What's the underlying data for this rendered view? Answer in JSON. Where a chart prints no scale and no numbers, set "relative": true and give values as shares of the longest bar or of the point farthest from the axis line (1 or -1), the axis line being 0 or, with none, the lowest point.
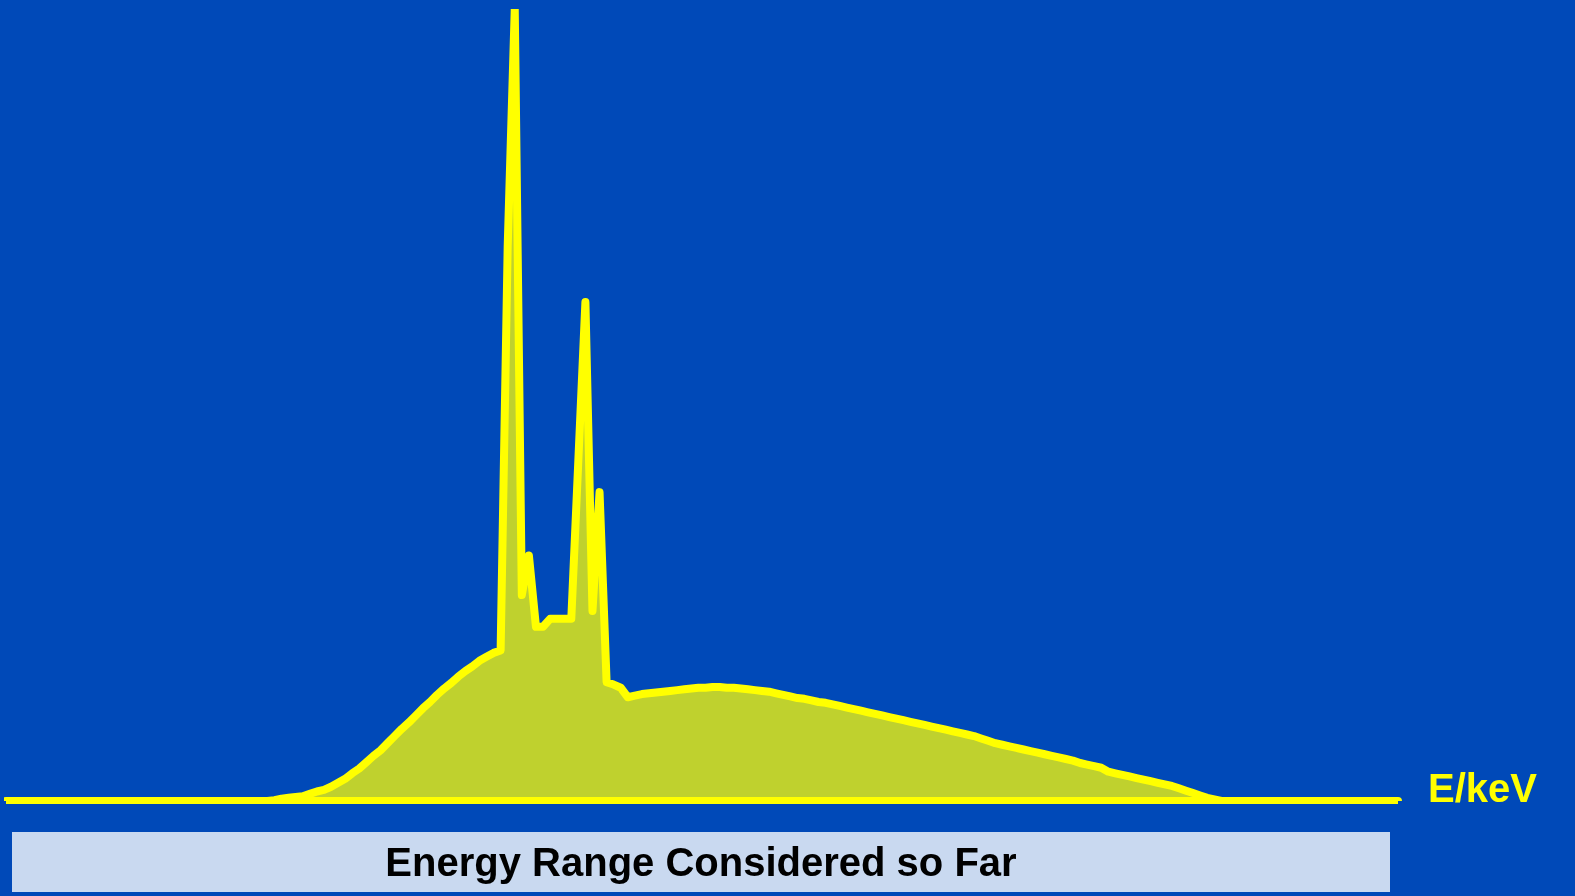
{
  "chart_data": {
    "type": "area",
    "relative": true,
    "xlabel": "E/keV",
    "annotations": [
      "Energy Range Considered so Far"
    ],
    "categories": [
      null,
      null,
      null,
      null,
      null,
      null,
      null,
      null,
      null,
      null,
      null,
      null,
      null,
      null,
      null,
      null,
      null,
      null,
      null,
      null,
      null,
      null,
      null,
      null,
      null,
      null,
      null,
      null,
      null,
      null,
      null,
      null,
      null,
      null,
      null,
      null,
      null,
      null,
      null,
      null,
      null,
      null,
      null,
      null,
      null,
      null,
      null,
      null,
      null,
      null,
      null,
      null,
      null,
      null,
      null,
      null,
      null,
      null,
      null,
      null,
      null,
      null,
      null,
      null,
      null,
      null,
      null,
      null,
      null,
      null,
      null,
      null,
      null,
      null,
      null,
      null,
      null,
      null,
      null,
      null,
      null,
      null,
      null,
      null,
      null,
      null,
      null,
      null,
      null,
      null,
      null,
      null,
      null,
      null,
      null,
      null,
      null,
      null,
      null,
      null,
      null,
      null,
      null,
      null,
      null,
      null,
      null,
      null,
      null,
      null,
      null,
      null,
      null,
      null,
      null,
      null,
      null,
      null,
      null,
      null,
      null,
      null,
      null,
      null,
      null,
      null,
      null,
      null,
      null,
      null,
      null,
      null,
      null,
      null,
      null,
      null,
      null,
      null,
      null,
      null,
      null,
      null,
      null,
      null,
      null,
      null,
      null,
      null,
      null,
      null,
      null,
      null,
      null,
      null,
      null,
      null,
      null,
      null,
      null,
      null,
      null,
      null,
      null,
      null,
      null,
      null,
      null,
      null,
      null,
      null,
      null,
      null,
      null,
      null,
      null,
      null,
      null,
      null,
      null,
      null,
      null,
      null,
      null,
      null,
      null,
      null,
      null,
      null,
      null,
      null,
      null,
      null,
      null,
      null,
      null,
      null,
      null,
      null
    ],
    "series": [
      {
        "color": "#ffff00",
        "values": [
          0,
          0,
          0,
          0,
          0,
          0,
          0,
          0,
          0,
          0,
          0,
          0,
          0,
          0,
          0,
          0,
          0,
          0,
          0,
          0,
          0,
          0,
          0,
          0,
          0,
          0,
          0,
          0,
          0,
          0,
          0,
          0,
          0,
          0,
          0,
          0,
          0,
          0,
          0.001,
          0.003,
          0.004,
          0.005,
          0.006,
          0.009,
          0.012,
          0.014,
          0.018,
          0.023,
          0.028,
          0.035,
          0.041,
          0.049,
          0.057,
          0.064,
          0.073,
          0.082,
          0.091,
          0.099,
          0.108,
          0.117,
          0.125,
          0.134,
          0.142,
          0.149,
          0.157,
          0.164,
          0.17,
          0.177,
          0.182,
          0.187,
          0.19,
          0.7,
          1,
          0.26,
          0.31,
          0.22,
          0.22,
          0.23,
          0.23,
          0.23,
          0.23,
          0.43,
          0.63,
          0.24,
          0.39,
          0.15,
          0.147,
          0.143,
          0.131,
          0.133,
          0.135,
          0.136,
          0.137,
          0.138,
          0.139,
          0.14,
          0.141,
          0.142,
          0.143,
          0.143,
          0.144,
          0.144,
          0.143,
          0.143,
          0.142,
          0.141,
          0.14,
          0.139,
          0.138,
          0.136,
          0.134,
          0.132,
          0.13,
          0.129,
          0.127,
          0.125,
          0.124,
          0.122,
          0.12,
          0.118,
          0.116,
          0.114,
          0.112,
          0.11,
          0.108,
          0.106,
          0.104,
          0.102,
          0.1,
          0.098,
          0.096,
          0.094,
          0.092,
          0.09,
          0.088,
          0.086,
          0.084,
          0.082,
          0.079,
          0.076,
          0.073,
          0.071,
          0.069,
          0.067,
          0.065,
          0.063,
          0.061,
          0.059,
          0.057,
          0.055,
          0.053,
          0.051,
          0.048,
          0.046,
          0.044,
          0.042,
          0.037,
          0.035,
          0.033,
          0.031,
          0.029,
          0.027,
          0.025,
          0.023,
          0.021,
          0.019,
          0.016,
          0.013,
          0.01,
          0.007,
          0.004,
          0.002,
          0,
          0,
          0,
          0,
          0,
          0,
          0,
          0,
          0,
          0,
          0,
          0,
          0,
          0,
          0,
          0,
          0,
          0,
          0,
          0,
          0,
          0,
          0,
          0,
          0,
          0
        ]
      }
    ]
  }
}
